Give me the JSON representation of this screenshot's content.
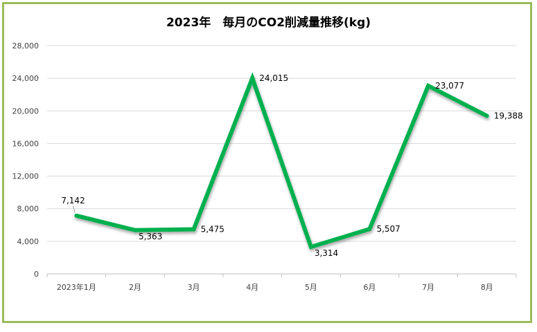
{
  "chart_data": {
    "type": "line",
    "title": "2023年　毎月のCO2削減量推移(kg)",
    "categories": [
      "2023年1月",
      "2月",
      "3月",
      "4月",
      "5月",
      "6月",
      "7月",
      "8月"
    ],
    "series": [
      {
        "values": [
          7142,
          5363,
          5475,
          24015,
          3314,
          5507,
          23077,
          19388
        ]
      }
    ],
    "data_labels": [
      "7,142",
      "5,363",
      "5,475",
      "24,015",
      "3,314",
      "5,507",
      "23,077",
      "19,388"
    ],
    "yticks": [
      "0",
      "4,000",
      "8,000",
      "12,000",
      "16,000",
      "20,000",
      "24,000",
      "28,000"
    ],
    "ylim": [
      0,
      28000
    ],
    "grid": true,
    "legend": "none",
    "line_color": "#00b050",
    "frame_color": "#9bbb59"
  }
}
